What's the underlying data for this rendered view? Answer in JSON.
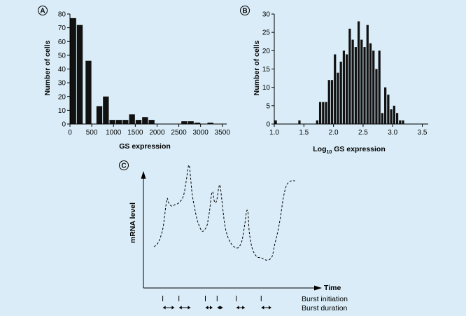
{
  "background_color": "#d9ecf7",
  "bar_color": "#111111",
  "chart_data": [
    {
      "panel": "A",
      "type": "bar",
      "xlabel": "GS expression",
      "ylabel": "Number of cells",
      "xlim": [
        0,
        3600
      ],
      "ylim": [
        0,
        80
      ],
      "xticks": [
        0,
        500,
        1000,
        1500,
        2000,
        2500,
        3000,
        3500
      ],
      "yticks": [
        0,
        10,
        20,
        30,
        40,
        50,
        60,
        70,
        80
      ],
      "bin_width": 150,
      "bins": [
        {
          "x": 0,
          "value": 77
        },
        {
          "x": 150,
          "value": 72
        },
        {
          "x": 300,
          "value": 0
        },
        {
          "x": 350,
          "value": 46
        },
        {
          "x": 500,
          "value": 0
        },
        {
          "x": 525,
          "value": 0
        },
        {
          "x": 600,
          "value": 13
        },
        {
          "x": 750,
          "value": 20
        },
        {
          "x": 900,
          "value": 3
        },
        {
          "x": 1050,
          "value": 3
        },
        {
          "x": 1200,
          "value": 3
        },
        {
          "x": 1350,
          "value": 7
        },
        {
          "x": 1500,
          "value": 3
        },
        {
          "x": 1650,
          "value": 5
        },
        {
          "x": 1800,
          "value": 3
        },
        {
          "x": 2550,
          "value": 2
        },
        {
          "x": 2700,
          "value": 2
        },
        {
          "x": 2850,
          "value": 1
        },
        {
          "x": 3150,
          "value": 1
        }
      ]
    },
    {
      "panel": "B",
      "type": "bar",
      "xlabel_pre": "Log",
      "xlabel_sub": "10",
      "xlabel_post": " GS expression",
      "ylabel": "Number of cells",
      "xlim": [
        1.0,
        3.6
      ],
      "ylim": [
        0,
        30
      ],
      "xticks": [
        1.0,
        1.5,
        2.0,
        2.5,
        3.0,
        3.5
      ],
      "yticks": [
        0,
        5,
        10,
        15,
        20,
        25,
        30
      ],
      "bin_width": 0.05,
      "bins": [
        {
          "x": 1.0,
          "value": 1
        },
        {
          "x": 1.4,
          "value": 1
        },
        {
          "x": 1.7,
          "value": 1
        },
        {
          "x": 1.75,
          "value": 6
        },
        {
          "x": 1.8,
          "value": 6
        },
        {
          "x": 1.85,
          "value": 6
        },
        {
          "x": 1.9,
          "value": 12
        },
        {
          "x": 1.95,
          "value": 12
        },
        {
          "x": 2.0,
          "value": 19
        },
        {
          "x": 2.05,
          "value": 14
        },
        {
          "x": 2.1,
          "value": 17
        },
        {
          "x": 2.15,
          "value": 20
        },
        {
          "x": 2.2,
          "value": 19
        },
        {
          "x": 2.25,
          "value": 26
        },
        {
          "x": 2.3,
          "value": 23
        },
        {
          "x": 2.35,
          "value": 21
        },
        {
          "x": 2.4,
          "value": 28
        },
        {
          "x": 2.45,
          "value": 23
        },
        {
          "x": 2.5,
          "value": 21
        },
        {
          "x": 2.55,
          "value": 27
        },
        {
          "x": 2.6,
          "value": 22
        },
        {
          "x": 2.65,
          "value": 20
        },
        {
          "x": 2.7,
          "value": 15
        },
        {
          "x": 2.75,
          "value": 20
        },
        {
          "x": 2.8,
          "value": 3
        },
        {
          "x": 2.85,
          "value": 10
        },
        {
          "x": 2.9,
          "value": 8
        },
        {
          "x": 2.95,
          "value": 4
        },
        {
          "x": 3.0,
          "value": 5
        },
        {
          "x": 3.05,
          "value": 3
        },
        {
          "x": 3.1,
          "value": 1
        },
        {
          "x": 3.15,
          "value": 1
        }
      ]
    },
    {
      "panel": "C",
      "type": "line",
      "line_style": "dashed",
      "xlabel": "Time",
      "ylabel": "mRNA level",
      "xlim": [
        0,
        100
      ],
      "ylim": [
        0,
        100
      ],
      "x": [
        0,
        3,
        6,
        8,
        9,
        10,
        12,
        14,
        17,
        20,
        22,
        23,
        24,
        25,
        26,
        28,
        30,
        33,
        36,
        37,
        38,
        39,
        40,
        41,
        42,
        43,
        44,
        45,
        46,
        48,
        50,
        53,
        56,
        58,
        60,
        62,
        63,
        64,
        65,
        67,
        70,
        73,
        76,
        78,
        80,
        81,
        82,
        84,
        86,
        88,
        90,
        92,
        94,
        96
      ],
      "y": [
        26,
        30,
        42,
        62,
        70,
        66,
        63,
        64,
        66,
        72,
        86,
        96,
        100,
        88,
        74,
        59,
        48,
        40,
        45,
        52,
        60,
        72,
        76,
        68,
        66,
        70,
        79,
        82,
        71,
        48,
        36,
        28,
        25,
        26,
        32,
        48,
        58,
        57,
        38,
        24,
        17,
        16,
        14,
        14,
        16,
        20,
        27,
        38,
        52,
        70,
        81,
        85,
        86,
        86
      ],
      "burst_initiation": [
        6,
        17,
        35,
        43,
        56,
        73
      ],
      "burst_duration": [
        [
          6,
          14
        ],
        [
          17,
          25
        ],
        [
          35,
          40
        ],
        [
          43,
          47
        ],
        [
          56,
          62
        ],
        [
          73,
          80
        ]
      ],
      "legend": [
        "Burst initiation",
        "Burst duration"
      ]
    }
  ],
  "panel_labels": [
    "A",
    "B",
    "C"
  ]
}
